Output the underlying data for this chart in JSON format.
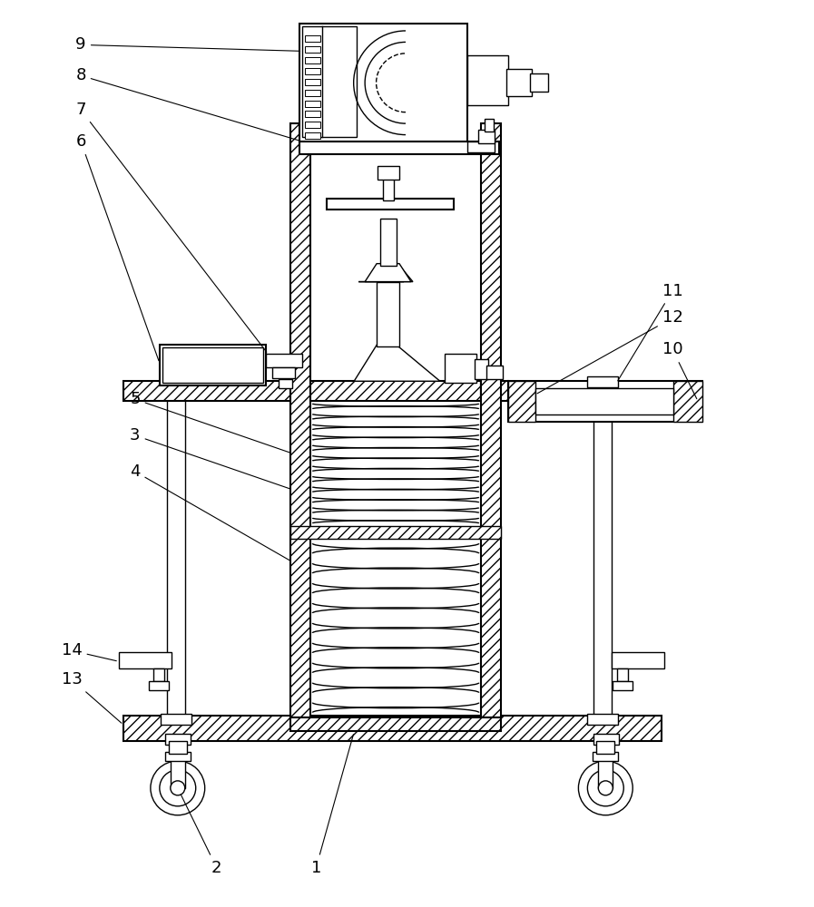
{
  "bg_color": "#ffffff",
  "line_color": "#000000",
  "fig_width": 8.97,
  "fig_height": 10.0,
  "lw": 1.0,
  "lw2": 1.5
}
